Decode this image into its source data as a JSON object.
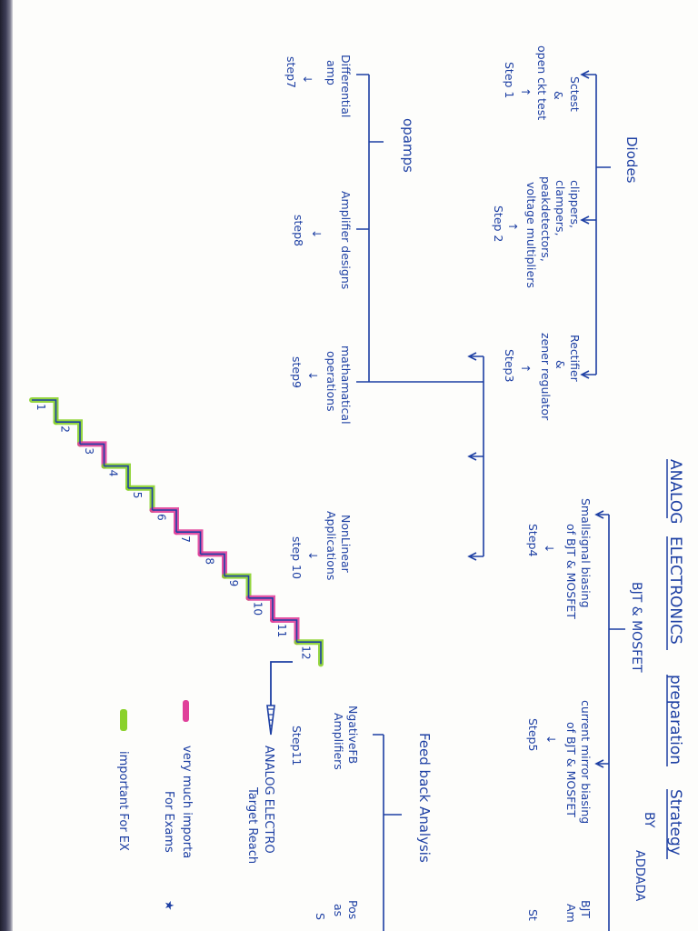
{
  "title": {
    "words": [
      "ANALOG",
      "ELECTRONICS",
      "preparation",
      "Strategy"
    ],
    "by": "BY",
    "author": "ADDADA"
  },
  "colors": {
    "ink": "#1d3fa3",
    "very_important": "#e0409a",
    "important": "#8ad12b"
  },
  "branches": [
    {
      "label": "Diodes",
      "children": [
        {
          "lines": [
            "Sctest",
            "&",
            "open ckt test"
          ],
          "step": "Step 1",
          "arrow": "up"
        },
        {
          "lines": [
            "clippers,",
            "clampers,",
            "peakdetectors,",
            "voltage multipliers"
          ],
          "step": "Step 2",
          "arrow": "up"
        },
        {
          "lines": [
            "Rectifier",
            "&",
            "zener regulator"
          ],
          "step": "Step3",
          "arrow": "up"
        }
      ]
    },
    {
      "label": "BJT & MOSFET",
      "children": [
        {
          "lines": [
            "Smallsignal biasing",
            "of BJT & MOSFET"
          ],
          "step": "Step4",
          "arrow": "down"
        },
        {
          "lines": [
            "current mirror biasing",
            "of BJT & MOSFET"
          ],
          "step": "Step5",
          "arrow": "down"
        },
        {
          "lines": [
            "BJT",
            "Am"
          ],
          "step": "St",
          "arrow": "down"
        }
      ]
    },
    {
      "label": "opamps",
      "children": [
        {
          "lines": [
            "Differential",
            "amp"
          ],
          "step": "step7",
          "arrow": "down"
        },
        {
          "lines": [
            "Amplifier designs"
          ],
          "step": "step8",
          "arrow": "down"
        },
        {
          "lines": [
            "mathamatical",
            "operations"
          ],
          "step": "step9",
          "arrow": "down"
        },
        {
          "lines": [
            "NonLinear",
            "Applications"
          ],
          "step": "step 10",
          "arrow": "down"
        }
      ]
    },
    {
      "label": "Feed back Analysis",
      "children": [
        {
          "lines": [
            "NgativeFB",
            "Amplifiers"
          ],
          "step": "Step11",
          "arrow": "none"
        },
        {
          "lines": [
            "Pos",
            "as"
          ],
          "step": "S",
          "arrow": "none"
        }
      ]
    }
  ],
  "staircase": {
    "steps": [
      "1",
      "2",
      "3",
      "4",
      "5",
      "6",
      "7",
      "8",
      "9",
      "10",
      "11",
      "12"
    ],
    "highlight": [
      "important",
      "important",
      "very_important",
      "important",
      "important",
      "very_important",
      "very_important",
      "very_important",
      "important",
      "very_important",
      "very_important",
      "important"
    ],
    "target": [
      "ANALOG ELECTRO",
      "Target Reach"
    ]
  },
  "legend": [
    {
      "color_key": "very_important",
      "lines": [
        "very much importa",
        "For Exams"
      ],
      "star": "★"
    },
    {
      "color_key": "important",
      "lines": [
        "important For EX"
      ],
      "star": ""
    }
  ]
}
